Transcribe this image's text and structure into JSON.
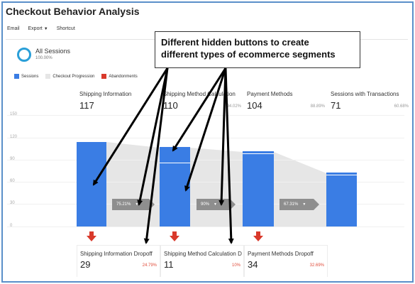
{
  "app": {
    "title": "Checkout Behavior Analysis"
  },
  "toolbar": {
    "email_label": "Email",
    "export_label": "Export",
    "shortcut_label": "Shortcut"
  },
  "segment": {
    "title": "All Sessions",
    "percent": "100.00%",
    "ring_color": "#2a9fd8"
  },
  "legend": [
    {
      "label": "Sessions",
      "color": "#3a7de4"
    },
    {
      "label": "Checkout Progression",
      "color": "#e6e6e6"
    },
    {
      "label": "Abandonments",
      "color": "#d9392b"
    }
  ],
  "y_ticks": [
    "150",
    "120",
    "90",
    "60",
    "30",
    "0"
  ],
  "steps": [
    {
      "name": "Shipping Information",
      "count": "117",
      "pct": ""
    },
    {
      "name": "Shipping Method Calculation",
      "count": "110",
      "pct": "94.02%"
    },
    {
      "name": "Payment Methods",
      "count": "104",
      "pct": "88.89%"
    },
    {
      "name": "Sessions with Transactions",
      "count": "71",
      "pct": "60.68%"
    }
  ],
  "progression": [
    "75.21%",
    "90%",
    "67.31%"
  ],
  "dropoffs": [
    {
      "name": "Shipping Information Dropoff",
      "count": "29",
      "pct": "24.79%"
    },
    {
      "name": "Shipping Method Calculation Dropoff",
      "count": "11",
      "pct": "10%"
    },
    {
      "name": "Payment Methods Dropoff",
      "count": "34",
      "pct": "32.69%"
    }
  ],
  "callout": {
    "line1": "Different hidden buttons to create",
    "line2": "different types of ecommerce segments"
  },
  "colors": {
    "bar": "#3a7de4",
    "abandon_arrow": "#d9392b",
    "pill": "#8e8e8e",
    "frame": "#5a8fc9"
  }
}
